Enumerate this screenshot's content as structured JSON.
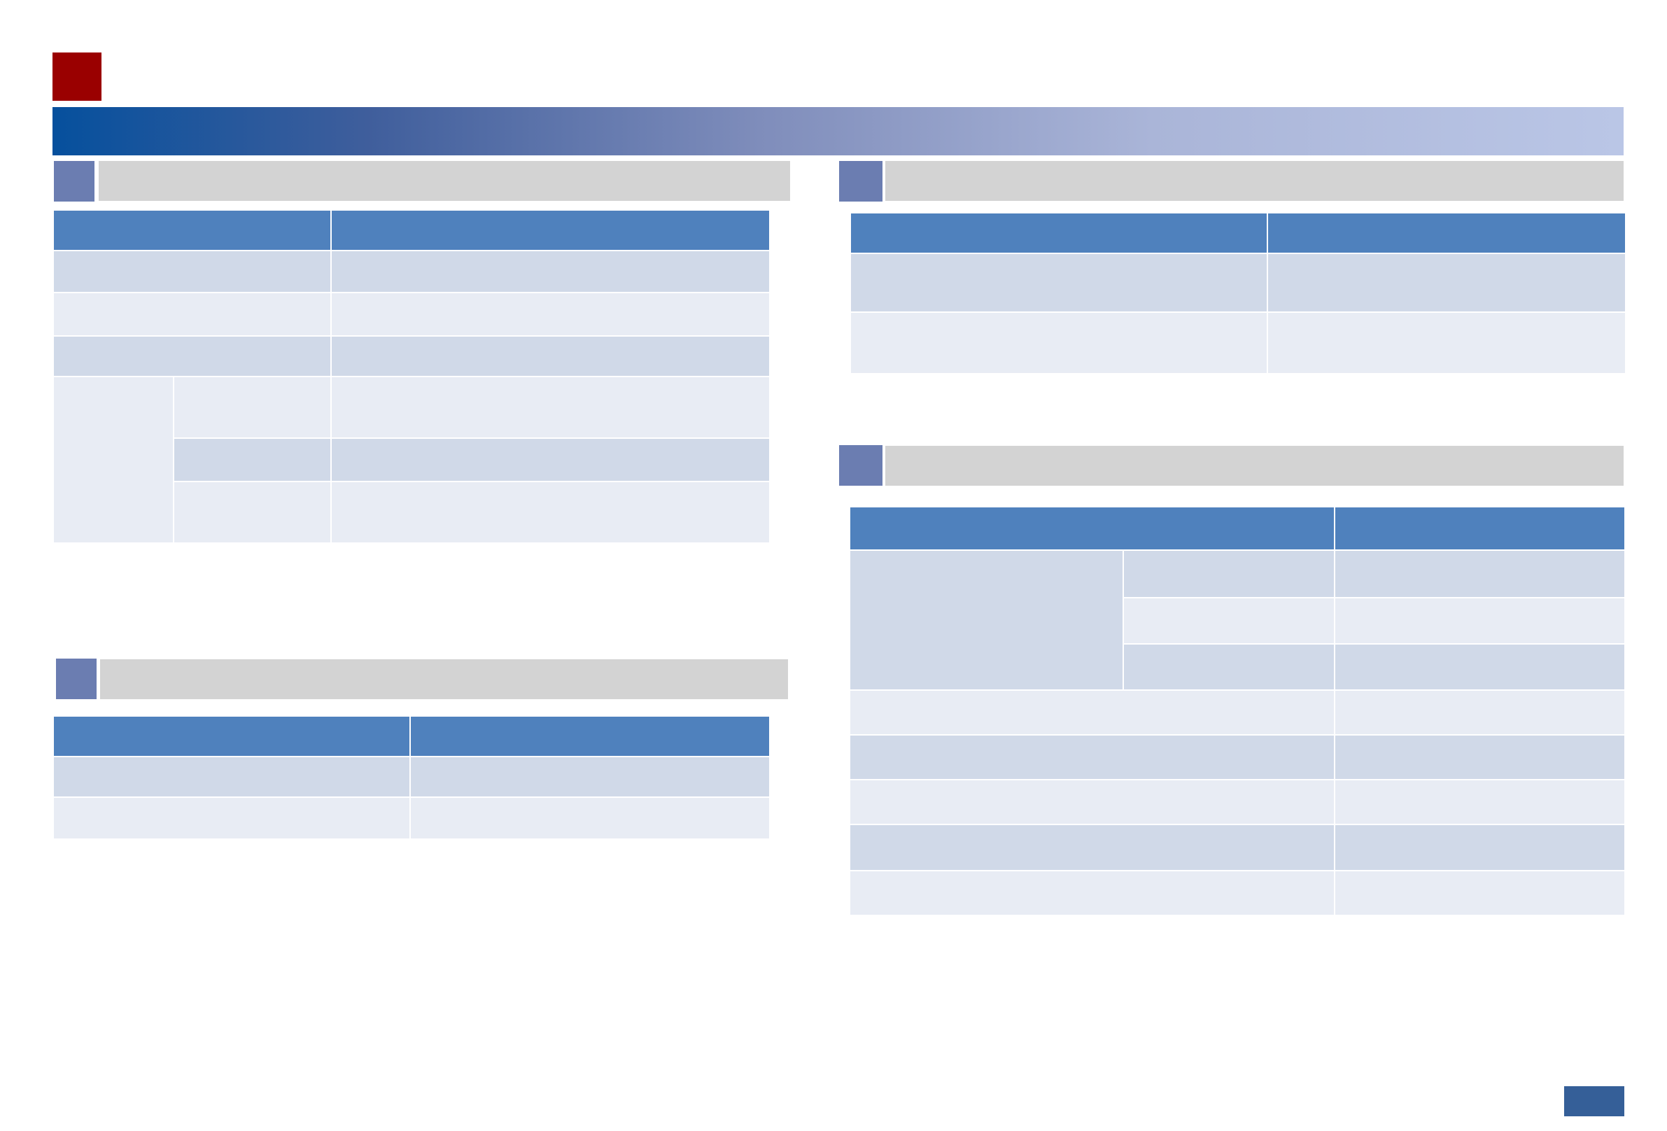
{
  "colors": {
    "logo_square": "#9a0000",
    "banner_start": "#06509d",
    "banner_end": "#bac6e6",
    "section_icon": "#6b7db1",
    "section_bar": "#d3d3d3",
    "table_header": "#4f81bd",
    "row_dark": "#d0d9e8",
    "row_light": "#e8ecf4",
    "footer_box": "#355f98"
  },
  "page": {
    "title": "",
    "page_number": ""
  },
  "section1": {
    "title": "",
    "header": [
      "",
      ""
    ],
    "rows": [
      [
        "",
        ""
      ],
      [
        "",
        ""
      ],
      [
        "",
        ""
      ]
    ],
    "group": {
      "label": "",
      "rows": [
        [
          "",
          ""
        ],
        [
          "",
          ""
        ],
        [
          "",
          ""
        ]
      ]
    }
  },
  "section2": {
    "title": "",
    "header": [
      "",
      ""
    ],
    "rows": [
      [
        "",
        ""
      ],
      [
        "",
        ""
      ]
    ]
  },
  "section3": {
    "title": "",
    "header": [
      "",
      ""
    ],
    "rows": [
      [
        "",
        ""
      ],
      [
        "",
        ""
      ]
    ]
  },
  "section4": {
    "title": "",
    "header": [
      "",
      ""
    ],
    "group": {
      "label": "",
      "rows": [
        [
          "",
          ""
        ],
        [
          "",
          ""
        ],
        [
          "",
          ""
        ]
      ]
    },
    "rows": [
      [
        "",
        ""
      ],
      [
        "",
        ""
      ],
      [
        "",
        ""
      ],
      [
        "",
        ""
      ],
      [
        "",
        ""
      ]
    ]
  }
}
